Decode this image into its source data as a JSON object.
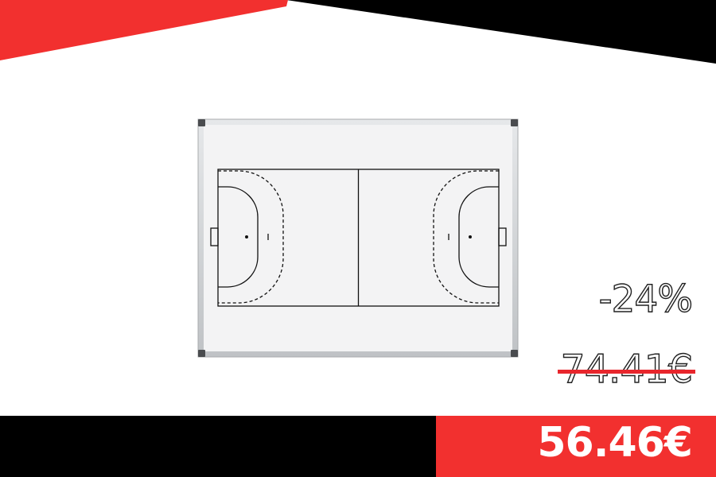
{
  "product": {
    "name": "handball court whiteboard"
  },
  "pricing": {
    "discount": "-24%",
    "old_price": "74.41€",
    "new_price": "56.46€"
  },
  "colors": {
    "accent_red": "#f2302f",
    "black": "#000000",
    "white": "#ffffff"
  }
}
